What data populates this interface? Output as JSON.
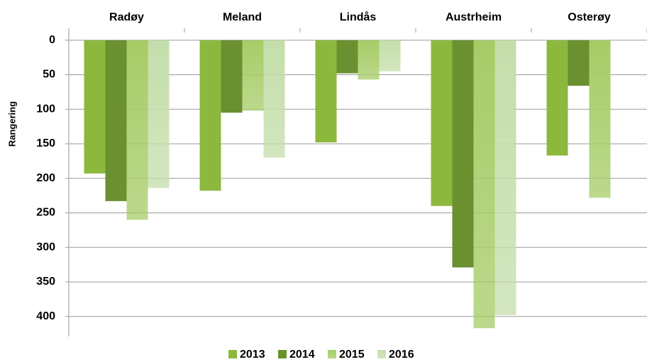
{
  "chart_data": {
    "type": "bar",
    "y_label": "Rangering",
    "categories": [
      "Radøy",
      "Meland",
      "Lindås",
      "Austrheim",
      "Osterøy"
    ],
    "series": [
      {
        "name": "2013",
        "color": "#8cb83e",
        "values": [
          193,
          218,
          148,
          240,
          167
        ]
      },
      {
        "name": "2014",
        "color": "#6a9030",
        "values": [
          233,
          105,
          48,
          329,
          66
        ]
      },
      {
        "name": "2015",
        "color": "#a6cc66",
        "values": [
          260,
          102,
          57,
          417,
          228
        ]
      },
      {
        "name": "2016",
        "color": "#c4deaa",
        "values": [
          214,
          170,
          45,
          398,
          null
        ]
      }
    ],
    "ylim": [
      -11,
      429
    ],
    "y_inverted": true,
    "yticks": [
      0,
      50,
      100,
      150,
      200,
      250,
      300,
      350,
      400
    ],
    "grid": true,
    "legend": "bottom"
  }
}
